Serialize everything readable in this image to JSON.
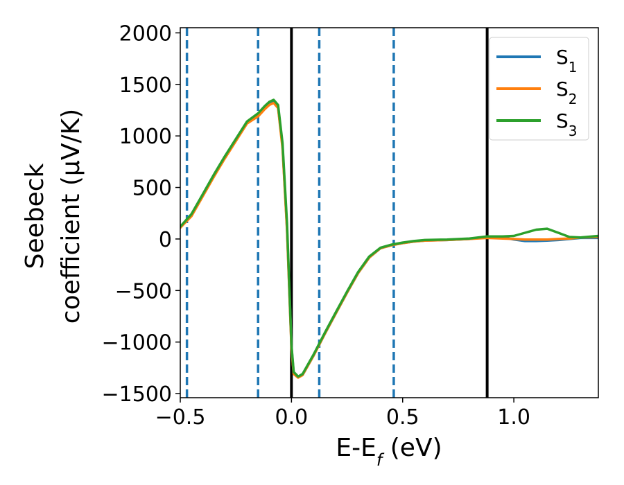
{
  "chart_data": {
    "type": "line",
    "title": "",
    "xlabel": "E-E_f (eV)",
    "ylabel": [
      "Seebeck",
      "coefficient  (μV/K)"
    ],
    "xlim": [
      -0.5,
      1.38
    ],
    "ylim": [
      -1540,
      2050
    ],
    "xticks": [
      -0.5,
      0.0,
      0.5,
      1.0
    ],
    "xtick_labels": [
      "−0.5",
      "0.0",
      "0.5",
      "1.0"
    ],
    "yticks": [
      -1500,
      -1000,
      -500,
      0,
      500,
      1000,
      1500,
      2000
    ],
    "ytick_labels": [
      "−1500",
      "−1000",
      "−500",
      "0",
      "500",
      "1000",
      "1500",
      "2000"
    ],
    "grid": false,
    "legend_position": "top-right",
    "series": [
      {
        "name": "S1",
        "legend_main": "S",
        "legend_sub": "1",
        "color": "#1f77b4",
        "x": [
          -0.5,
          -0.45,
          -0.4,
          -0.35,
          -0.3,
          -0.25,
          -0.2,
          -0.15,
          -0.12,
          -0.1,
          -0.08,
          -0.06,
          -0.04,
          -0.02,
          0.0,
          0.01,
          0.03,
          0.05,
          0.1,
          0.15,
          0.2,
          0.25,
          0.3,
          0.35,
          0.4,
          0.45,
          0.5,
          0.55,
          0.6,
          0.7,
          0.8,
          0.88,
          0.95,
          1.0,
          1.05,
          1.1,
          1.15,
          1.2,
          1.25,
          1.3,
          1.38
        ],
        "y": [
          110,
          230,
          420,
          610,
          790,
          960,
          1130,
          1200,
          1270,
          1310,
          1330,
          1280,
          900,
          100,
          -1050,
          -1300,
          -1340,
          -1320,
          -1130,
          -920,
          -720,
          -520,
          -330,
          -180,
          -90,
          -60,
          -40,
          -25,
          -15,
          -10,
          0,
          20,
          15,
          -5,
          -20,
          -20,
          -15,
          -10,
          0,
          10,
          10
        ]
      },
      {
        "name": "S2",
        "legend_main": "S",
        "legend_sub": "2",
        "color": "#ff7f0e",
        "x": [
          -0.5,
          -0.45,
          -0.4,
          -0.35,
          -0.3,
          -0.25,
          -0.2,
          -0.15,
          -0.12,
          -0.1,
          -0.08,
          -0.06,
          -0.04,
          -0.02,
          0.0,
          0.01,
          0.03,
          0.05,
          0.1,
          0.15,
          0.2,
          0.25,
          0.3,
          0.35,
          0.4,
          0.45,
          0.5,
          0.55,
          0.6,
          0.7,
          0.8,
          0.88,
          0.95,
          1.0,
          1.05,
          1.1,
          1.15,
          1.2,
          1.25,
          1.3,
          1.38
        ],
        "y": [
          110,
          220,
          410,
          600,
          780,
          950,
          1120,
          1190,
          1260,
          1300,
          1320,
          1270,
          880,
          80,
          -1070,
          -1310,
          -1345,
          -1320,
          -1130,
          -920,
          -720,
          -520,
          -330,
          -180,
          -90,
          -60,
          -40,
          -25,
          -15,
          -10,
          0,
          10,
          5,
          0,
          -5,
          -5,
          -5,
          0,
          5,
          15,
          20
        ]
      },
      {
        "name": "S3",
        "legend_main": "S",
        "legend_sub": "3",
        "color": "#2ca02c",
        "x": [
          -0.5,
          -0.45,
          -0.4,
          -0.35,
          -0.3,
          -0.25,
          -0.2,
          -0.15,
          -0.12,
          -0.1,
          -0.08,
          -0.06,
          -0.04,
          -0.02,
          0.0,
          0.01,
          0.03,
          0.05,
          0.1,
          0.15,
          0.2,
          0.25,
          0.3,
          0.35,
          0.4,
          0.45,
          0.5,
          0.55,
          0.6,
          0.7,
          0.8,
          0.88,
          0.95,
          1.0,
          1.05,
          1.1,
          1.15,
          1.2,
          1.25,
          1.3,
          1.38
        ],
        "y": [
          120,
          240,
          430,
          620,
          800,
          970,
          1140,
          1220,
          1290,
          1330,
          1350,
          1300,
          930,
          150,
          -1030,
          -1290,
          -1335,
          -1310,
          -1120,
          -910,
          -710,
          -510,
          -320,
          -170,
          -85,
          -55,
          -35,
          -20,
          -10,
          -5,
          5,
          25,
          25,
          30,
          60,
          90,
          100,
          60,
          20,
          15,
          30
        ]
      }
    ],
    "vertical_lines": [
      {
        "x": -0.47,
        "style": "dashed",
        "color": "#1f77b4"
      },
      {
        "x": -0.15,
        "style": "dashed",
        "color": "#1f77b4"
      },
      {
        "x": 0.125,
        "style": "dashed",
        "color": "#1f77b4"
      },
      {
        "x": 0.46,
        "style": "dashed",
        "color": "#1f77b4"
      },
      {
        "x": 0.0,
        "style": "solid",
        "color": "#000000"
      },
      {
        "x": 0.88,
        "style": "solid",
        "color": "#000000"
      }
    ]
  }
}
